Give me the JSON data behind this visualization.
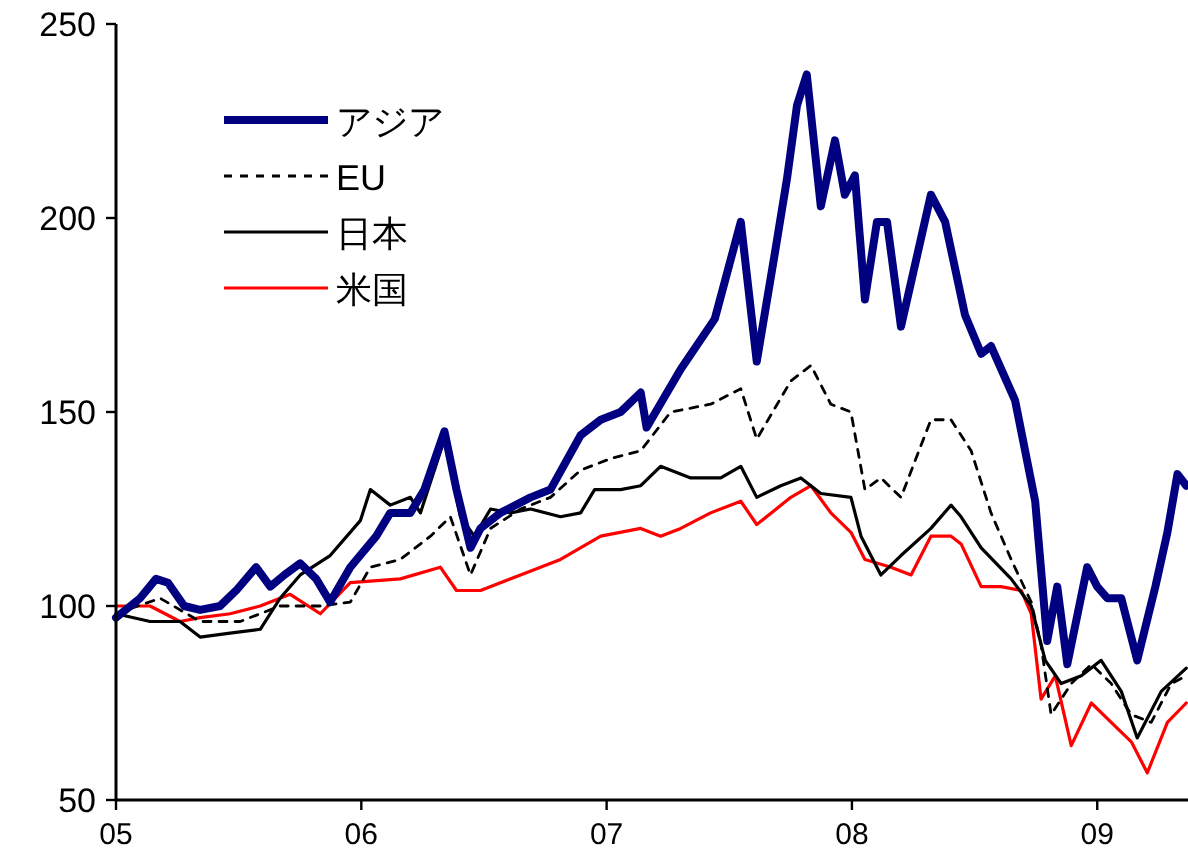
{
  "chart_data": {
    "type": "line",
    "legend": "top left",
    "grid": false,
    "xlim": [
      2005,
      2009.37
    ],
    "ylim": [
      50,
      250
    ],
    "xticks": [
      {
        "value": 2005,
        "label": "05"
      },
      {
        "value": 2006,
        "label": "06"
      },
      {
        "value": 2007,
        "label": "07"
      },
      {
        "value": 2008,
        "label": "08"
      },
      {
        "value": 2009,
        "label": "09"
      }
    ],
    "yticks": [
      50,
      100,
      150,
      200,
      250
    ],
    "series": [
      {
        "name": "アジア",
        "color": "#000080",
        "line_style": "solid",
        "x": [
          2005.0,
          2005.098,
          2005.163,
          2005.212,
          2005.278,
          2005.343,
          2005.424,
          2005.49,
          2005.571,
          2005.629,
          2005.686,
          2005.751,
          2005.816,
          2005.873,
          2005.955,
          2006.061,
          2006.118,
          2006.2,
          2006.257,
          2006.339,
          2006.388,
          2006.445,
          2006.486,
          2006.567,
          2006.69,
          2006.771,
          2006.894,
          2006.976,
          2007.057,
          2007.139,
          2007.163,
          2007.302,
          2007.441,
          2007.547,
          2007.612,
          2007.686,
          2007.735,
          2007.776,
          2007.816,
          2007.873,
          2007.931,
          2007.971,
          2008.012,
          2008.053,
          2008.102,
          2008.143,
          2008.2,
          2008.322,
          2008.38,
          2008.461,
          2008.527,
          2008.567,
          2008.665,
          2008.747,
          2008.796,
          2008.837,
          2008.878,
          2008.959,
          2009.0,
          2009.041,
          2009.098,
          2009.163,
          2009.237,
          2009.286,
          2009.327,
          2009.363
        ],
        "values": [
          97,
          102,
          107,
          106,
          100,
          99,
          100,
          104,
          110,
          105,
          108,
          111,
          107,
          101,
          110,
          118,
          124,
          124,
          130,
          145,
          130,
          115,
          120,
          124,
          128,
          130,
          144,
          148,
          150,
          155,
          146,
          161,
          174,
          199,
          163,
          191,
          210,
          229,
          237,
          203,
          220,
          206,
          211,
          179,
          199,
          199,
          172,
          206,
          199,
          175,
          165,
          167,
          153,
          127,
          91,
          105,
          85,
          110,
          105,
          102,
          102,
          86,
          105,
          119,
          134,
          131
        ]
      },
      {
        "name": "EU",
        "color": "#000000",
        "line_style": "dashed",
        "x": [
          2005.0,
          2005.18,
          2005.343,
          2005.506,
          2005.669,
          2005.833,
          2005.955,
          2006.037,
          2006.159,
          2006.282,
          2006.363,
          2006.445,
          2006.527,
          2006.649,
          2006.771,
          2006.894,
          2007.016,
          2007.139,
          2007.261,
          2007.424,
          2007.547,
          2007.612,
          2007.751,
          2007.833,
          2007.914,
          2007.996,
          2008.053,
          2008.118,
          2008.2,
          2008.322,
          2008.404,
          2008.486,
          2008.567,
          2008.649,
          2008.731,
          2008.771,
          2008.812,
          2008.894,
          2008.976,
          2009.057,
          2009.139,
          2009.22,
          2009.302,
          2009.363
        ],
        "values": [
          98,
          102,
          96,
          96,
          100,
          100,
          101,
          110,
          112,
          118,
          123,
          108,
          120,
          125,
          128,
          135,
          138,
          140,
          150,
          152,
          156,
          143,
          158,
          162,
          152,
          150,
          130,
          133,
          128,
          148,
          148,
          140,
          124,
          112,
          101,
          90,
          72,
          80,
          85,
          80,
          72,
          70,
          80,
          82
        ]
      },
      {
        "name": "日本",
        "color": "#000000",
        "line_style": "solid",
        "x": [
          2005.0,
          2005.139,
          2005.261,
          2005.343,
          2005.465,
          2005.588,
          2005.669,
          2005.751,
          2005.873,
          2005.996,
          2006.037,
          2006.118,
          2006.2,
          2006.241,
          2006.339,
          2006.404,
          2006.461,
          2006.527,
          2006.608,
          2006.69,
          2006.812,
          2006.894,
          2006.951,
          2007.057,
          2007.139,
          2007.22,
          2007.343,
          2007.465,
          2007.547,
          2007.612,
          2007.71,
          2007.792,
          2007.873,
          2007.996,
          2008.037,
          2008.118,
          2008.2,
          2008.322,
          2008.404,
          2008.445,
          2008.527,
          2008.649,
          2008.731,
          2008.788,
          2008.853,
          2008.935,
          2009.016,
          2009.098,
          2009.163,
          2009.261,
          2009.363
        ],
        "values": [
          98,
          96,
          96,
          92,
          93,
          94,
          102,
          108,
          113,
          122,
          130,
          126,
          128,
          124,
          143,
          123,
          118,
          125,
          124,
          125,
          123,
          124,
          130,
          130,
          131,
          136,
          133,
          133,
          136,
          128,
          131,
          133,
          129,
          128,
          118,
          108,
          113,
          120,
          126,
          123,
          115,
          107,
          100,
          86,
          80,
          82,
          86,
          78,
          66,
          78,
          84
        ]
      },
      {
        "name": "米国",
        "color": "#ff0000",
        "line_style": "solid",
        "x": [
          2005.0,
          2005.139,
          2005.261,
          2005.343,
          2005.465,
          2005.588,
          2005.71,
          2005.833,
          2005.955,
          2006.159,
          2006.322,
          2006.388,
          2006.486,
          2006.649,
          2006.812,
          2006.976,
          2007.139,
          2007.22,
          2007.302,
          2007.424,
          2007.547,
          2007.612,
          2007.751,
          2007.833,
          2007.914,
          2007.996,
          2008.053,
          2008.159,
          2008.241,
          2008.322,
          2008.404,
          2008.445,
          2008.527,
          2008.608,
          2008.69,
          2008.731,
          2008.771,
          2008.829,
          2008.894,
          2008.976,
          2009.057,
          2009.139,
          2009.204,
          2009.286,
          2009.363
        ],
        "values": [
          100,
          100,
          96,
          97,
          98,
          100,
          103,
          98,
          106,
          107,
          110,
          104,
          104,
          108,
          112,
          118,
          120,
          118,
          120,
          124,
          127,
          121,
          128,
          131,
          124,
          119,
          112,
          110,
          108,
          118,
          118,
          116,
          105,
          105,
          104,
          98,
          76,
          82,
          64,
          75,
          70,
          65,
          57,
          70,
          75
        ]
      }
    ]
  }
}
